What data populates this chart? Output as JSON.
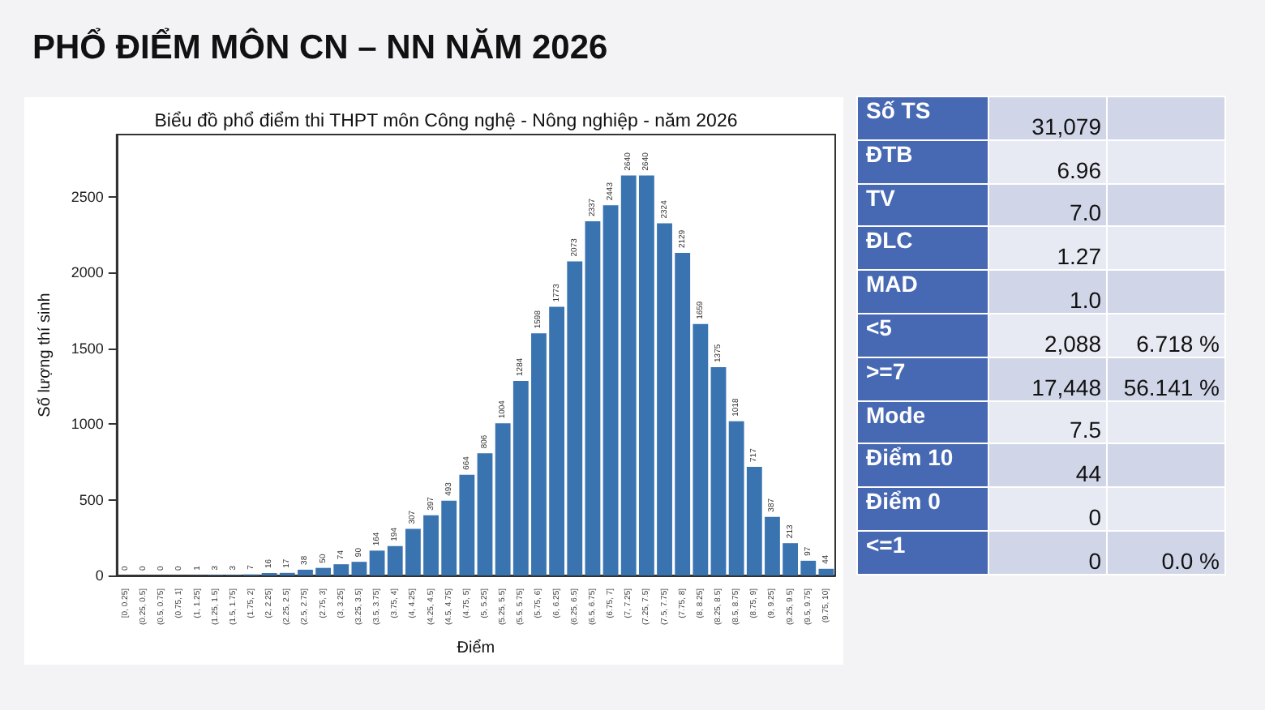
{
  "chart_data": [
    {
      "type": "bar",
      "title": "PHỔ ĐIỂM MÔN CN – NN NĂM 2026",
      "subtitle": "Biểu đồ phổ điểm thi THPT môn Công nghệ - Nông nghiệp - năm 2026",
      "xlabel": "Điểm",
      "ylabel": "Số lượng thí sinh",
      "categories": [
        "[0, 0.25]",
        "(0.25, 0.5]",
        "(0.5, 0.75]",
        "(0.75, 1]",
        "(1, 1.25]",
        "(1.25, 1.5]",
        "(1.5, 1.75]",
        "(1.75, 2]",
        "(2, 2.25]",
        "(2.25, 2.5]",
        "(2.5, 2.75]",
        "(2.75, 3]",
        "(3, 3.25]",
        "(3.25, 3.5]",
        "(3.5, 3.75]",
        "(3.75, 4]",
        "(4, 4.25]",
        "(4.25, 4.5]",
        "(4.5, 4.75]",
        "(4.75, 5]",
        "(5, 5.25]",
        "(5.25, 5.5]",
        "(5.5, 5.75]",
        "(5.75, 6]",
        "(6, 6.25]",
        "(6.25, 6.5]",
        "(6.5, 6.75]",
        "(6.75, 7]",
        "(7, 7.25]",
        "(7.25, 7.5]",
        "(7.5, 7.75]",
        "(7.75, 8]",
        "(8, 8.25]",
        "(8.25, 8.5]",
        "(8.5, 8.75]",
        "(8.75, 9]",
        "(9, 9.25]",
        "(9.25, 9.5]",
        "(9.5, 9.75]",
        "(9.75, 10]"
      ],
      "values": [
        0,
        0,
        0,
        0,
        1,
        3,
        3,
        7,
        16,
        17,
        38,
        50,
        74,
        90,
        164,
        194,
        307,
        397,
        493,
        664,
        806,
        1004,
        1284,
        1598,
        1773,
        2073,
        2337,
        2443,
        2640,
        2640,
        2324,
        2129,
        1659,
        1375,
        1018,
        717,
        387,
        213,
        97,
        44
      ],
      "color": "#3a74b0",
      "ylim": [
        0,
        2910
      ],
      "yticks": [
        0,
        500,
        1000,
        1500,
        2000,
        2500
      ],
      "data_labels": true
    },
    {
      "type": "other",
      "categories": [
        "Số TS",
        "ĐTB",
        "TV",
        "ĐLC",
        "MAD",
        "<5",
        ">=7",
        "Mode",
        "Điểm 10",
        "Điểm 0",
        "<=1"
      ],
      "cell_labels": [
        [
          "31,079",
          null
        ],
        [
          "6.96",
          null
        ],
        [
          "7.0",
          null
        ],
        [
          "1.27",
          null
        ],
        [
          "1.0",
          null
        ],
        [
          "2,088",
          "6.718 %"
        ],
        [
          "17,448",
          "56.141 %"
        ],
        [
          "7.5",
          null
        ],
        [
          "44",
          null
        ],
        [
          "0",
          null
        ],
        [
          "0",
          "0.0 %"
        ]
      ]
    }
  ]
}
